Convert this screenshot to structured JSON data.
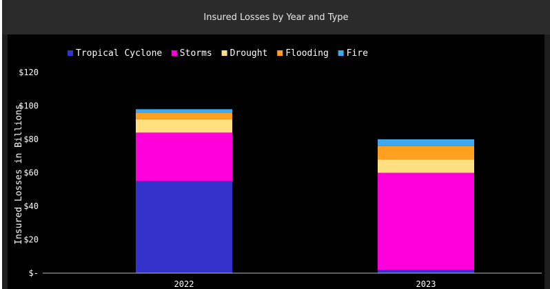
{
  "chart_data": {
    "type": "bar",
    "stacked": true,
    "title": "Insured Losses by Year and Type",
    "xlabel": "",
    "ylabel": "Insured Losses in Billions",
    "categories": [
      "2022",
      "2023"
    ],
    "series": [
      {
        "name": "Tropical Cyclone",
        "color": "#3333cc",
        "values": [
          55,
          2
        ]
      },
      {
        "name": "Storms",
        "color": "#ff00dd",
        "values": [
          29,
          58
        ]
      },
      {
        "name": "Drought",
        "color": "#ffe080",
        "values": [
          8,
          8
        ]
      },
      {
        "name": "Flooding",
        "color": "#ffa020",
        "values": [
          4,
          8
        ]
      },
      {
        "name": "Fire",
        "color": "#40a8ee",
        "values": [
          2,
          4
        ]
      }
    ],
    "ylim": [
      0,
      120
    ],
    "yticks": [
      0,
      20,
      40,
      60,
      80,
      100,
      120
    ],
    "ytick_labels": [
      "$-",
      "$20",
      "$40",
      "$60",
      "$80",
      "$100",
      "$120"
    ],
    "legend_position": "top-left",
    "grid": false
  }
}
